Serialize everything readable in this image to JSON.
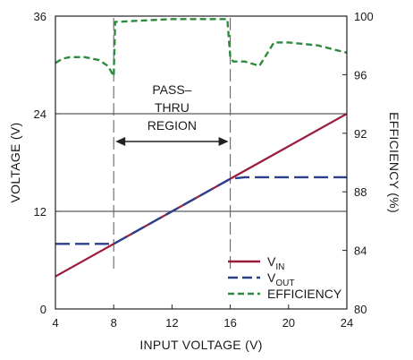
{
  "chart_data": {
    "type": "line",
    "xlabel": "INPUT VOLTAGE (V)",
    "ylabel_left": "VOLTAGE (V)",
    "ylabel_right": "EFFICIENCY (%)",
    "xlim": [
      4,
      24
    ],
    "ylim_left": [
      0,
      36
    ],
    "ylim_right": [
      80,
      100
    ],
    "xticks": [
      "4",
      "8",
      "12",
      "16",
      "20",
      "24"
    ],
    "yticks_left": [
      "0",
      "12",
      "24",
      "36"
    ],
    "yticks_right": [
      "80",
      "84",
      "88",
      "92",
      "96",
      "100"
    ],
    "grid": {
      "horizontal": [
        12,
        24
      ],
      "vertical": false
    },
    "annotation": {
      "lines": [
        "PASS–",
        "THRU",
        "REGION"
      ],
      "x_range": [
        8,
        16
      ]
    },
    "legend": {
      "placement": "bottom-right"
    },
    "series": [
      {
        "name": "V",
        "name_sub": "IN",
        "axis": "left",
        "style": "solid",
        "color": "#9b1b3a",
        "x": [
          4,
          24
        ],
        "y": [
          4,
          24
        ]
      },
      {
        "name": "V",
        "name_sub": "OUT",
        "axis": "left",
        "style": "dashed",
        "color": "#2b3f8c",
        "x": [
          4,
          8,
          16,
          17,
          24
        ],
        "y": [
          8,
          8,
          16,
          16.2,
          16.2
        ]
      },
      {
        "name": "EFFICIENCY",
        "name_sub": "",
        "axis": "right",
        "style": "dashed",
        "color": "#2e8b3e",
        "x": [
          4,
          4.5,
          5,
          6,
          7,
          7.6,
          8,
          8.1,
          10,
          12,
          14,
          15.8,
          16,
          16.2,
          17,
          18,
          19,
          20,
          22,
          24
        ],
        "y": [
          96.8,
          97.1,
          97.2,
          97.2,
          97.0,
          96.6,
          95.9,
          99.6,
          99.7,
          99.8,
          99.8,
          99.8,
          97.2,
          96.9,
          96.9,
          96.6,
          98.2,
          98.2,
          98.0,
          97.5
        ]
      }
    ]
  }
}
